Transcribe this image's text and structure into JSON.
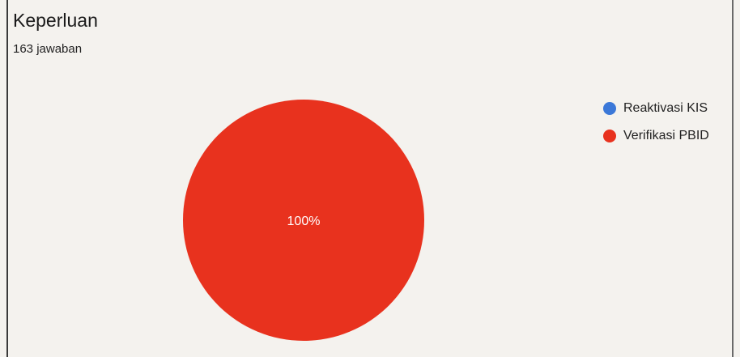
{
  "chart_data": {
    "type": "pie",
    "title": "Keperluan",
    "subtitle": "163 jawaban",
    "categories": [
      "Reaktivasi KIS",
      "Verifikasi PBID"
    ],
    "values": [
      0,
      100
    ],
    "value_labels": [
      "",
      "100%"
    ],
    "colors": [
      "#3b78d8",
      "#e8321e"
    ],
    "legend_position": "right"
  }
}
